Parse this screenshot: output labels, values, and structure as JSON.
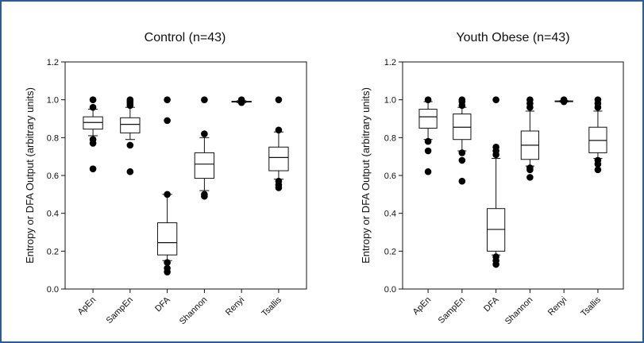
{
  "chart_data": [
    {
      "type": "box",
      "title": "Control (n=43)",
      "ylabel": "Entropy or DFA Output (arbitrary units)",
      "ylim": [
        0,
        1.2
      ],
      "yticks": [
        "0.0",
        "0.2",
        "0.4",
        "0.6",
        "0.8",
        "1.0",
        "1.2"
      ],
      "categories": [
        "ApEn",
        "SampEn",
        "DFA",
        "Shannon",
        "Renyi",
        "Tsallis"
      ],
      "boxes": [
        {
          "whisker_low": 0.81,
          "q1": 0.845,
          "median": 0.88,
          "q3": 0.91,
          "whisker_high": 0.95,
          "outliers": [
            1.0,
            0.96,
            0.79,
            0.77,
            0.635
          ]
        },
        {
          "whisker_low": 0.79,
          "q1": 0.825,
          "median": 0.87,
          "q3": 0.905,
          "whisker_high": 0.96,
          "outliers": [
            1.0,
            0.99,
            0.98,
            0.97,
            0.76,
            0.62
          ]
        },
        {
          "whisker_low": 0.15,
          "q1": 0.18,
          "median": 0.245,
          "q3": 0.35,
          "whisker_high": 0.5,
          "outliers": [
            1.0,
            0.89,
            0.5,
            0.14,
            0.11,
            0.09
          ]
        },
        {
          "whisker_low": 0.52,
          "q1": 0.585,
          "median": 0.66,
          "q3": 0.72,
          "whisker_high": 0.8,
          "outliers": [
            1.0,
            0.82,
            0.5,
            0.49
          ]
        },
        {
          "whisker_low": 0.985,
          "q1": 0.988,
          "median": 0.99,
          "q3": 0.992,
          "whisker_high": 0.995,
          "outliers": [
            1.0,
            0.985
          ]
        },
        {
          "whisker_low": 0.58,
          "q1": 0.625,
          "median": 0.695,
          "q3": 0.75,
          "whisker_high": 0.83,
          "outliers": [
            1.0,
            0.84,
            0.57,
            0.55,
            0.535
          ]
        }
      ]
    },
    {
      "type": "box",
      "title": "Youth Obese (n=43)",
      "ylabel": "Entropy or DFA Output (arbitrary units)",
      "ylim": [
        0,
        1.2
      ],
      "yticks": [
        "0.0",
        "0.2",
        "0.4",
        "0.6",
        "0.8",
        "1.0",
        "1.2"
      ],
      "categories": [
        "ApEn",
        "SampEn",
        "DFA",
        "Shannon",
        "Renyi",
        "Tsallis"
      ],
      "boxes": [
        {
          "whisker_low": 0.79,
          "q1": 0.85,
          "median": 0.91,
          "q3": 0.95,
          "whisker_high": 0.99,
          "outliers": [
            1.0,
            0.78,
            0.73,
            0.62
          ]
        },
        {
          "whisker_low": 0.73,
          "q1": 0.79,
          "median": 0.855,
          "q3": 0.925,
          "whisker_high": 0.96,
          "outliers": [
            1.0,
            0.99,
            0.97,
            0.72,
            0.68,
            0.57
          ]
        },
        {
          "whisker_low": 0.18,
          "q1": 0.2,
          "median": 0.315,
          "q3": 0.425,
          "whisker_high": 0.69,
          "outliers": [
            1.0,
            0.75,
            0.73,
            0.71,
            0.17,
            0.15,
            0.13
          ]
        },
        {
          "whisker_low": 0.65,
          "q1": 0.685,
          "median": 0.76,
          "q3": 0.835,
          "whisker_high": 0.94,
          "outliers": [
            1.0,
            0.98,
            0.96,
            0.64,
            0.63,
            0.59
          ]
        },
        {
          "whisker_low": 0.988,
          "q1": 0.99,
          "median": 0.992,
          "q3": 0.994,
          "whisker_high": 0.996,
          "outliers": [
            1.0,
            0.99
          ]
        },
        {
          "whisker_low": 0.69,
          "q1": 0.72,
          "median": 0.785,
          "q3": 0.855,
          "whisker_high": 0.94,
          "outliers": [
            1.0,
            0.98,
            0.96,
            0.68,
            0.66,
            0.63
          ]
        }
      ]
    }
  ]
}
